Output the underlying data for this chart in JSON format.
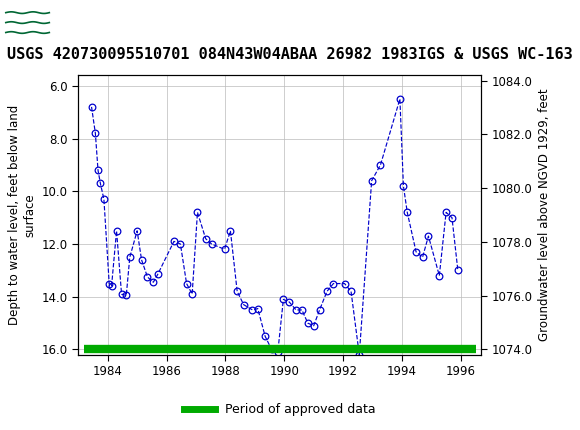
{
  "title": "USGS 420730095510701 084N43W04ABAA 26982 1983IGS & USGS WC-163",
  "ylabel_left": "Depth to water level, feet below land\nsurface",
  "ylabel_right": "Groundwater level above NGVD 1929, feet",
  "ylim_left": [
    16.2,
    5.6
  ],
  "ylim_right": [
    1073.8,
    1084.2
  ],
  "xlim": [
    1983.0,
    1996.7
  ],
  "xticks": [
    1984,
    1986,
    1988,
    1990,
    1992,
    1994,
    1996
  ],
  "yticks_left": [
    6.0,
    8.0,
    10.0,
    12.0,
    14.0,
    16.0
  ],
  "yticks_right": [
    1074.0,
    1076.0,
    1078.0,
    1080.0,
    1082.0,
    1084.0
  ],
  "header_color": "#006633",
  "line_color": "#0000CC",
  "marker_color": "#0000CC",
  "approved_color": "#00AA00",
  "background_color": "#ffffff",
  "plot_bg_color": "#ffffff",
  "data_x": [
    1983.45,
    1983.58,
    1983.67,
    1983.75,
    1983.87,
    1984.05,
    1984.13,
    1984.3,
    1984.47,
    1984.63,
    1984.75,
    1985.0,
    1985.15,
    1985.35,
    1985.55,
    1985.7,
    1986.25,
    1986.47,
    1986.68,
    1986.87,
    1987.05,
    1987.33,
    1987.53,
    1987.97,
    1988.17,
    1988.4,
    1988.62,
    1988.92,
    1989.1,
    1989.35,
    1989.57,
    1989.78,
    1989.97,
    1990.17,
    1990.4,
    1990.6,
    1990.8,
    1991.0,
    1991.2,
    1991.45,
    1991.67,
    1992.05,
    1992.27,
    1992.55,
    1992.97,
    1993.27,
    1993.93,
    1994.05,
    1994.18,
    1994.48,
    1994.7,
    1994.9,
    1995.27,
    1995.5,
    1995.7,
    1995.9
  ],
  "data_depth": [
    6.8,
    7.8,
    9.2,
    9.7,
    10.3,
    13.5,
    13.6,
    11.5,
    13.9,
    13.95,
    12.5,
    11.5,
    12.6,
    13.25,
    13.45,
    13.15,
    11.9,
    12.0,
    13.5,
    13.9,
    10.8,
    11.8,
    12.0,
    12.2,
    11.5,
    13.8,
    14.3,
    14.5,
    14.45,
    15.5,
    16.0,
    16.1,
    14.1,
    14.2,
    14.5,
    14.5,
    15.0,
    15.1,
    14.5,
    13.8,
    13.5,
    13.5,
    13.8,
    16.2,
    9.6,
    9.0,
    6.5,
    9.8,
    10.8,
    12.3,
    12.5,
    11.7,
    13.2,
    10.8,
    11.0,
    13.0
  ],
  "approved_x_start": 1983.2,
  "approved_x_end": 1996.5,
  "approved_y": 16.0,
  "legend_label": "Period of approved data",
  "title_fontsize": 11,
  "label_fontsize": 8.5,
  "tick_fontsize": 8.5
}
